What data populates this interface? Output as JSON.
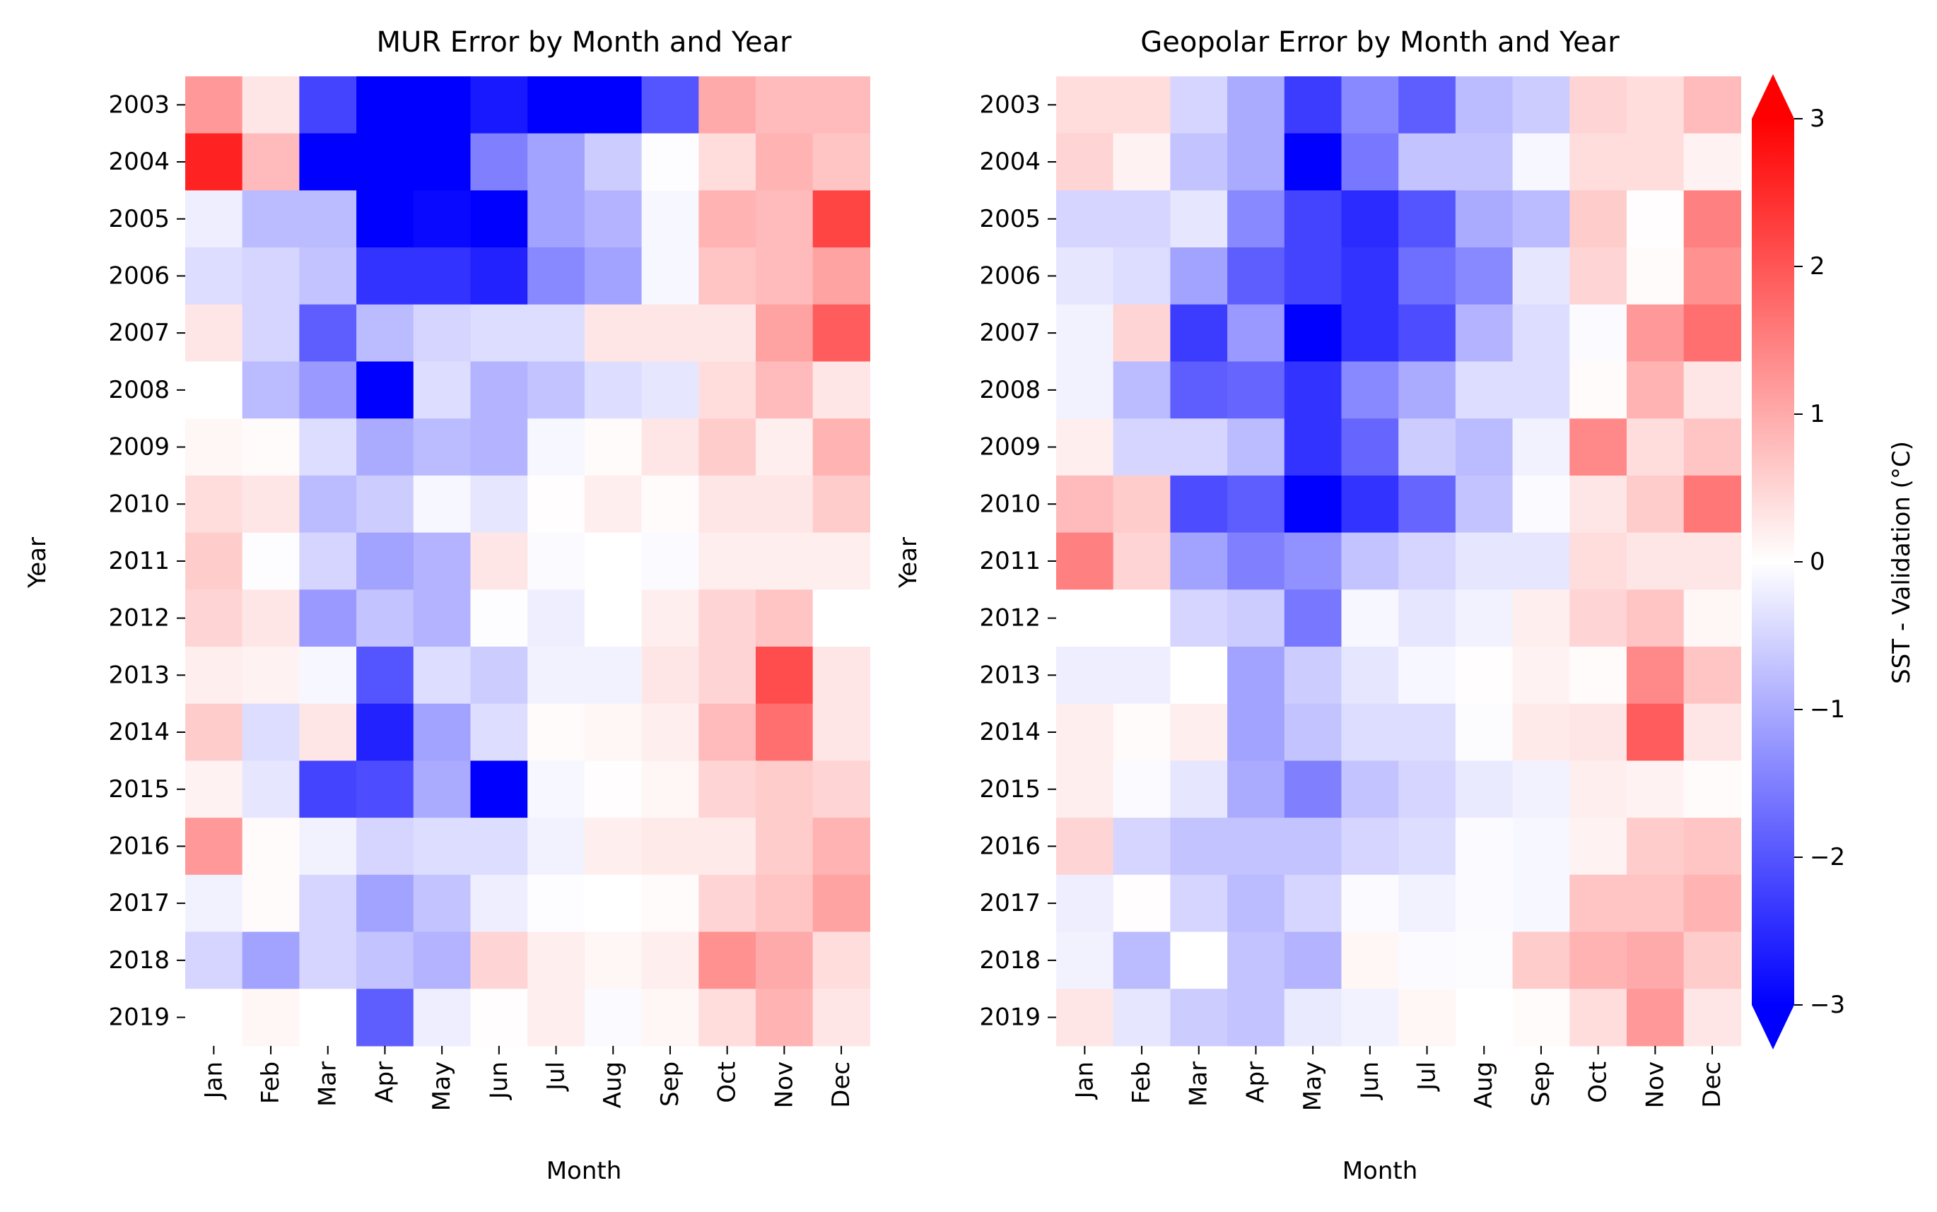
{
  "chart_data": [
    {
      "type": "heatmap",
      "title": "MUR Error by Month and Year",
      "xlabel": "Month",
      "ylabel": "Year",
      "x": [
        "Jan",
        "Feb",
        "Mar",
        "Apr",
        "May",
        "Jun",
        "Jul",
        "Aug",
        "Sep",
        "Oct",
        "Nov",
        "Dec"
      ],
      "y": [
        "2003",
        "2004",
        "2005",
        "2006",
        "2007",
        "2008",
        "2009",
        "2010",
        "2011",
        "2012",
        "2013",
        "2014",
        "2015",
        "2016",
        "2017",
        "2018",
        "2019"
      ],
      "values": [
        [
          1.2,
          0.3,
          -2.2,
          -3.3,
          -3.3,
          -2.7,
          -3.3,
          -3.3,
          -2.0,
          1.0,
          0.8,
          0.8
        ],
        [
          2.6,
          0.8,
          -3.3,
          -3.3,
          -3.3,
          -1.5,
          -1.1,
          -0.6,
          -0.02,
          0.4,
          0.9,
          0.7
        ],
        [
          -0.2,
          -0.8,
          -0.8,
          -3.3,
          -2.9,
          -3.3,
          -1.1,
          -0.9,
          -0.1,
          0.9,
          0.8,
          2.2
        ],
        [
          -0.4,
          -0.5,
          -0.7,
          -2.4,
          -2.4,
          -2.6,
          -1.4,
          -1.1,
          -0.1,
          0.7,
          0.8,
          1.1
        ],
        [
          0.3,
          -0.5,
          -1.9,
          -0.8,
          -0.5,
          -0.4,
          -0.4,
          0.3,
          0.3,
          0.3,
          1.1,
          1.9
        ],
        [
          0.0,
          -0.8,
          -1.2,
          -3.3,
          -0.4,
          -0.9,
          -0.7,
          -0.4,
          -0.3,
          0.4,
          0.8,
          0.3
        ],
        [
          0.1,
          0.05,
          -0.4,
          -1.0,
          -0.8,
          -0.9,
          -0.1,
          0.05,
          0.3,
          0.6,
          0.2,
          0.9
        ],
        [
          0.4,
          0.3,
          -0.8,
          -0.6,
          -0.1,
          -0.3,
          0.02,
          0.2,
          0.05,
          0.3,
          0.3,
          0.6
        ],
        [
          0.6,
          -0.02,
          -0.5,
          -1.1,
          -0.9,
          0.3,
          -0.05,
          0.0,
          -0.05,
          0.2,
          0.2,
          0.2
        ],
        [
          0.5,
          0.3,
          -1.2,
          -0.7,
          -0.9,
          -0.02,
          -0.2,
          0.0,
          0.2,
          0.5,
          0.7,
          0.0
        ],
        [
          0.2,
          0.15,
          -0.1,
          -2.0,
          -0.4,
          -0.6,
          -0.15,
          -0.15,
          0.3,
          0.5,
          2.1,
          0.3
        ],
        [
          0.6,
          -0.4,
          0.3,
          -2.6,
          -1.1,
          -0.4,
          0.05,
          0.1,
          0.2,
          0.8,
          1.7,
          0.3
        ],
        [
          0.15,
          -0.3,
          -2.2,
          -2.1,
          -1.0,
          -3.3,
          -0.1,
          0.02,
          0.1,
          0.5,
          0.6,
          0.5
        ],
        [
          1.2,
          0.05,
          -0.15,
          -0.5,
          -0.4,
          -0.4,
          -0.15,
          0.2,
          0.25,
          0.25,
          0.6,
          0.9
        ],
        [
          -0.15,
          0.05,
          -0.5,
          -1.1,
          -0.7,
          -0.2,
          -0.02,
          0.0,
          0.05,
          0.5,
          0.7,
          1.1
        ],
        [
          -0.5,
          -1.1,
          -0.5,
          -0.7,
          -0.9,
          0.5,
          0.2,
          0.1,
          0.2,
          1.3,
          1.0,
          0.4
        ],
        [
          0.0,
          0.1,
          0.0,
          -1.9,
          -0.2,
          0.02,
          0.2,
          -0.05,
          0.1,
          0.4,
          0.9,
          0.3
        ]
      ]
    },
    {
      "type": "heatmap",
      "title": "Geopolar Error by Month and Year",
      "xlabel": "Month",
      "ylabel": "Year",
      "x": [
        "Jan",
        "Feb",
        "Mar",
        "Apr",
        "May",
        "Jun",
        "Jul",
        "Aug",
        "Sep",
        "Oct",
        "Nov",
        "Dec"
      ],
      "y": [
        "2003",
        "2004",
        "2005",
        "2006",
        "2007",
        "2008",
        "2009",
        "2010",
        "2011",
        "2012",
        "2013",
        "2014",
        "2015",
        "2016",
        "2017",
        "2018",
        "2019"
      ],
      "values": [
        [
          0.4,
          0.4,
          -0.5,
          -1.0,
          -2.3,
          -1.4,
          -1.9,
          -0.8,
          -0.6,
          0.5,
          0.4,
          0.8
        ],
        [
          0.5,
          0.15,
          -0.7,
          -1.0,
          -3.3,
          -1.6,
          -0.7,
          -0.7,
          -0.1,
          0.4,
          0.4,
          0.15
        ],
        [
          -0.5,
          -0.5,
          -0.3,
          -1.4,
          -2.2,
          -2.5,
          -2.0,
          -1.0,
          -0.8,
          0.6,
          0.02,
          1.5
        ],
        [
          -0.3,
          -0.4,
          -1.1,
          -1.9,
          -2.2,
          -2.4,
          -1.7,
          -1.4,
          -0.3,
          0.5,
          0.05,
          1.3
        ],
        [
          -0.15,
          0.5,
          -2.3,
          -1.2,
          -3.3,
          -2.4,
          -2.1,
          -0.9,
          -0.4,
          -0.05,
          1.2,
          1.7
        ],
        [
          -0.15,
          -0.8,
          -1.9,
          -1.8,
          -2.4,
          -1.4,
          -1.0,
          -0.4,
          -0.4,
          0.05,
          0.9,
          0.3
        ],
        [
          0.2,
          -0.5,
          -0.5,
          -0.8,
          -2.4,
          -1.8,
          -0.6,
          -0.8,
          -0.15,
          1.4,
          0.4,
          0.7
        ],
        [
          0.8,
          0.6,
          -2.1,
          -1.9,
          -3.3,
          -2.4,
          -1.8,
          -0.7,
          -0.05,
          0.3,
          0.6,
          1.6
        ],
        [
          1.5,
          0.5,
          -1.1,
          -1.5,
          -1.3,
          -0.7,
          -0.5,
          -0.3,
          -0.3,
          0.4,
          0.3,
          0.3
        ],
        [
          0.0,
          0.0,
          -0.5,
          -0.6,
          -1.6,
          -0.1,
          -0.3,
          -0.15,
          0.2,
          0.5,
          0.7,
          0.1
        ],
        [
          -0.2,
          -0.2,
          0.0,
          -1.1,
          -0.6,
          -0.3,
          -0.1,
          0.02,
          0.15,
          0.05,
          1.4,
          0.7
        ],
        [
          0.2,
          0.05,
          0.2,
          -1.1,
          -0.7,
          -0.4,
          -0.4,
          -0.03,
          0.25,
          0.3,
          1.9,
          0.3
        ],
        [
          0.2,
          -0.05,
          -0.3,
          -1.0,
          -1.5,
          -0.7,
          -0.5,
          -0.25,
          -0.15,
          0.2,
          0.15,
          0.05
        ],
        [
          0.5,
          -0.5,
          -0.7,
          -0.7,
          -0.7,
          -0.5,
          -0.4,
          -0.05,
          -0.1,
          0.15,
          0.6,
          0.7
        ],
        [
          -0.2,
          0.02,
          -0.5,
          -0.8,
          -0.5,
          -0.05,
          -0.15,
          -0.05,
          -0.1,
          0.7,
          0.7,
          0.9
        ],
        [
          -0.15,
          -0.8,
          0.0,
          -0.7,
          -0.9,
          0.1,
          -0.05,
          -0.03,
          0.6,
          0.9,
          1.0,
          0.6
        ],
        [
          0.3,
          -0.3,
          -0.6,
          -0.7,
          -0.25,
          -0.15,
          0.1,
          0.0,
          0.05,
          0.4,
          1.2,
          0.3
        ]
      ]
    }
  ],
  "colorbar": {
    "label": "SST - Validation (°C)",
    "vmin": -3,
    "vmax": 3,
    "ticks": [
      3,
      2,
      1,
      0,
      -1,
      -2,
      -3
    ],
    "tick_labels": [
      "3",
      "2",
      "1",
      "0",
      "−1",
      "−2",
      "−3"
    ],
    "extend": "both",
    "colormap": "bwr",
    "colors": {
      "low": "#0000ff",
      "mid": "#ffffff",
      "high": "#ff0000"
    }
  }
}
